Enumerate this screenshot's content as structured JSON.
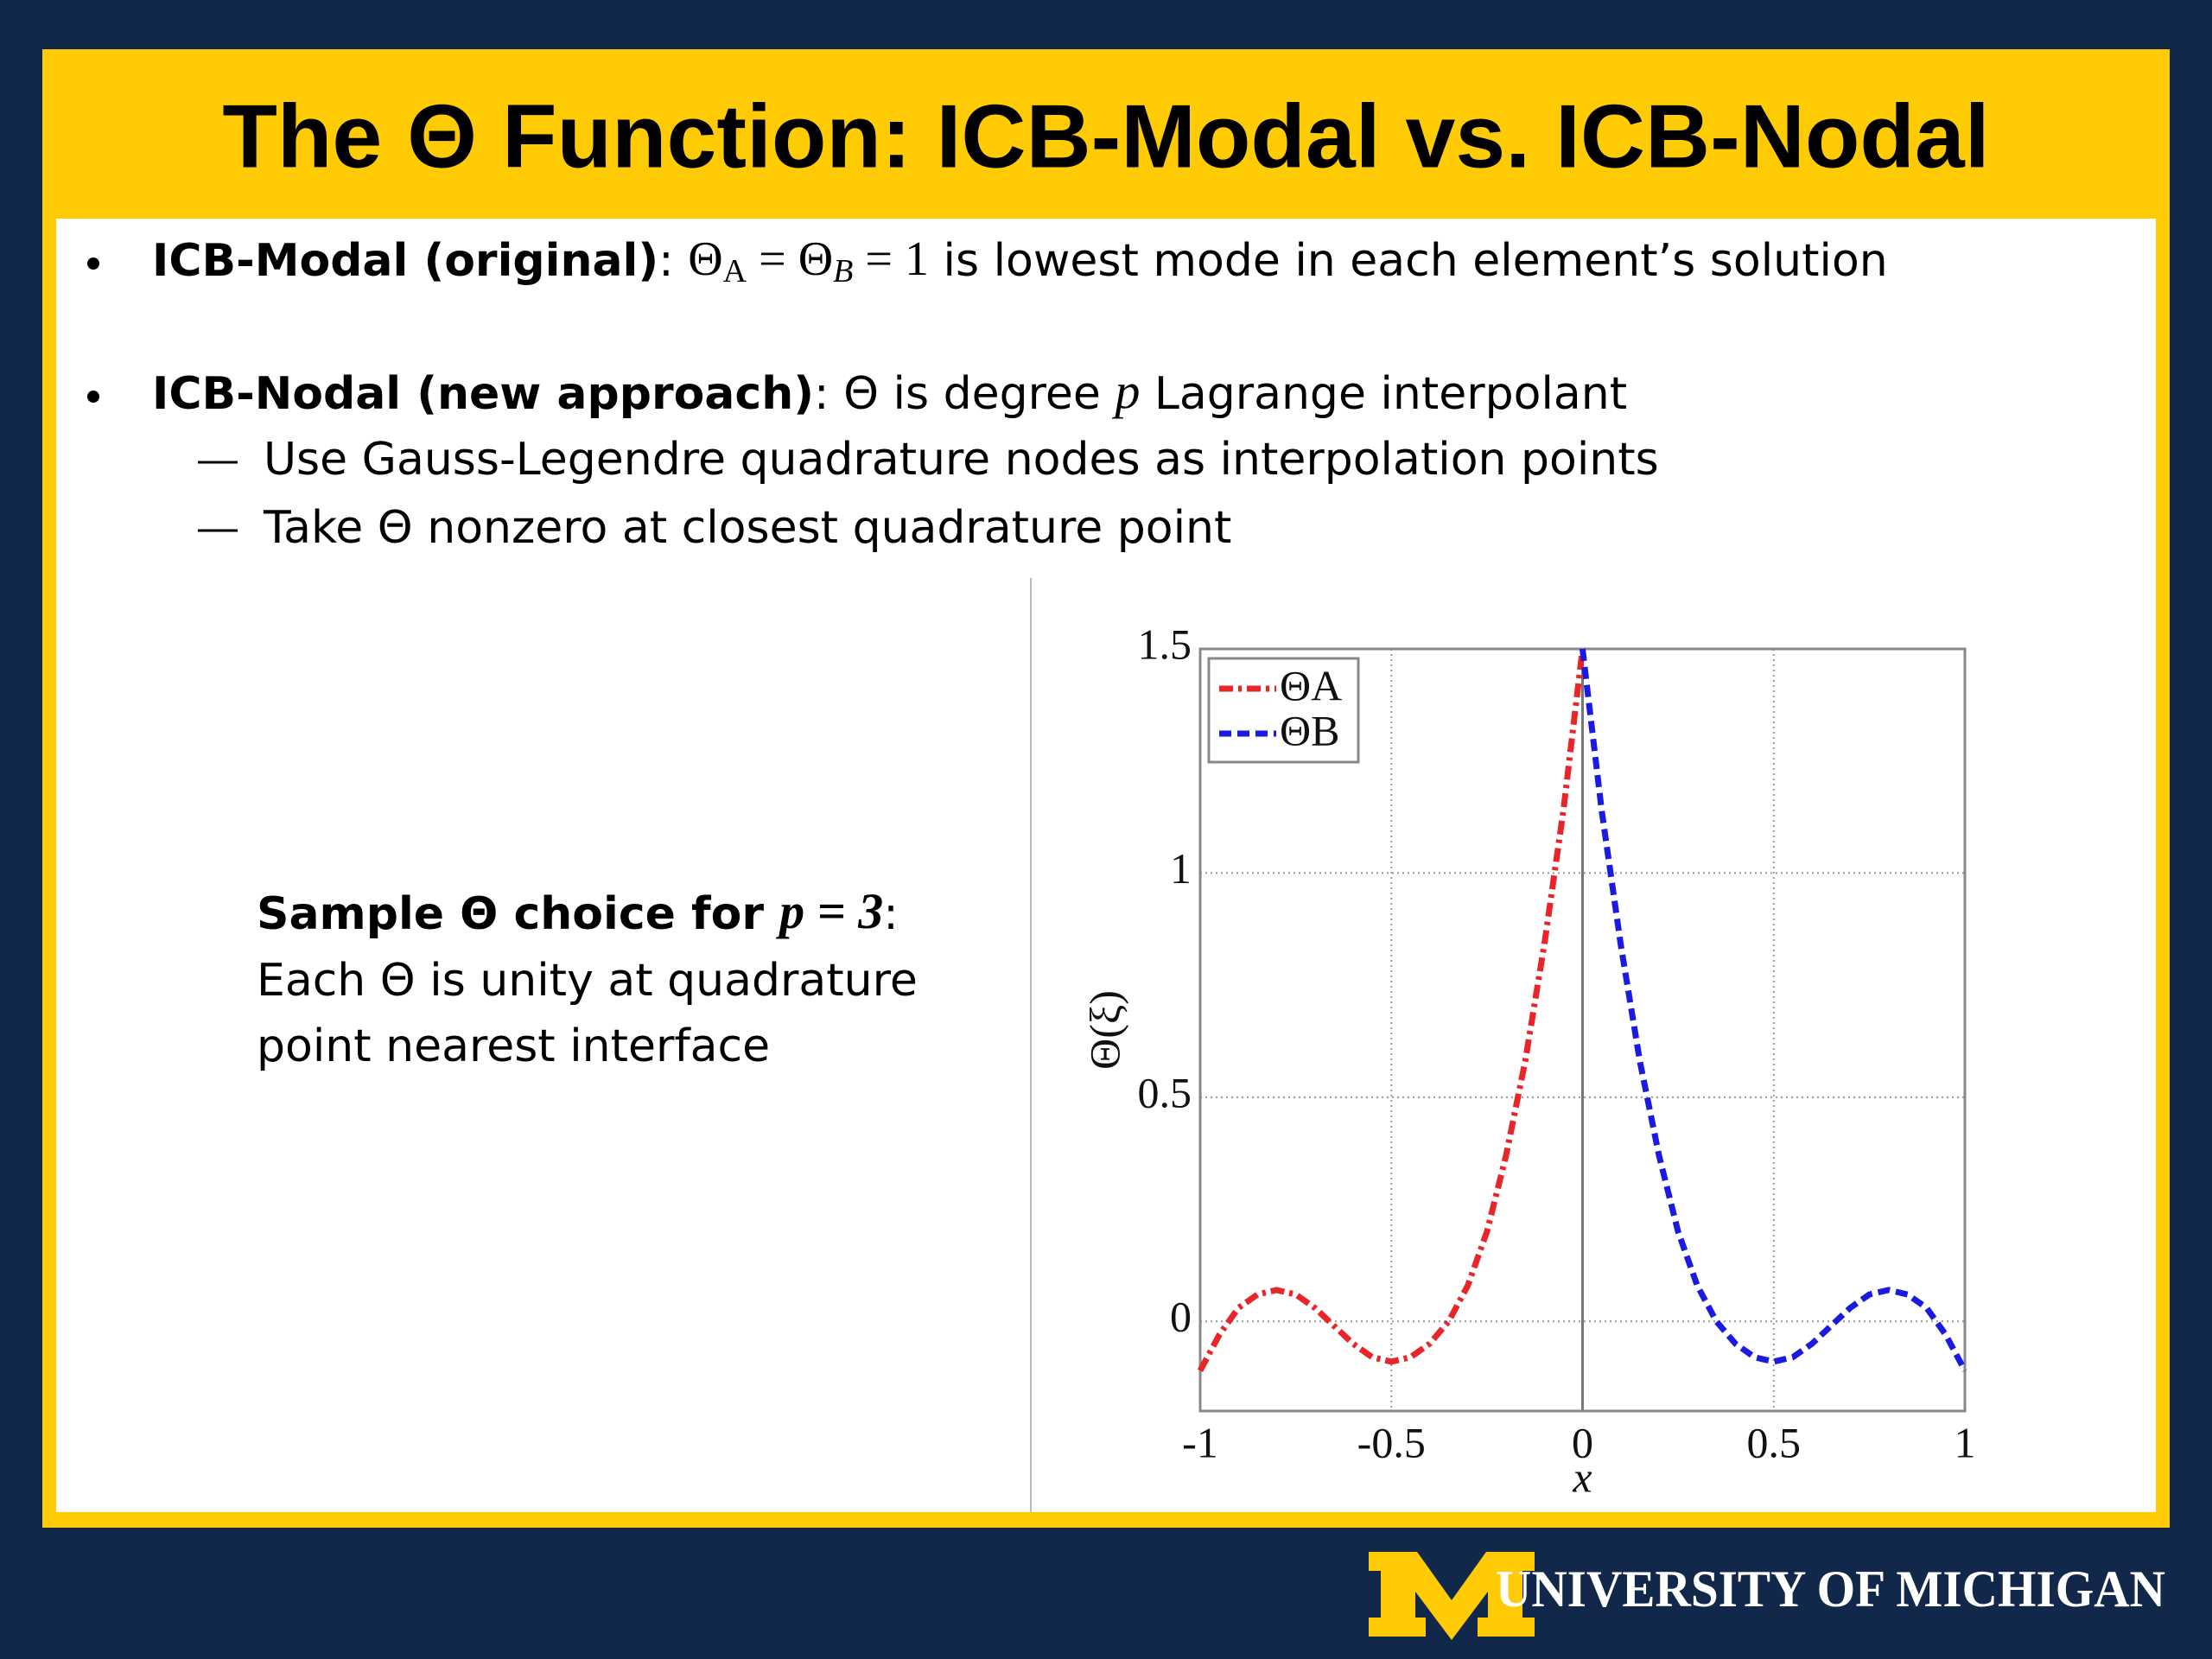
{
  "header": {
    "title": "The Θ Function: ICB-Modal vs. ICB-Nodal"
  },
  "bullets": [
    {
      "parts": [
        {
          "text": "ICB-Modal (original)",
          "style": "bold"
        },
        {
          "text": ": ",
          "style": "plain"
        },
        {
          "text": "Θ",
          "style": "math"
        },
        {
          "text": "A",
          "style": "sub"
        },
        {
          "text": " = Θ",
          "style": "math"
        },
        {
          "text": "B",
          "style": "sub-italic"
        },
        {
          "text": " = 1",
          "style": "math"
        },
        {
          "text": " is lowest mode in each element’s solution",
          "style": "plain"
        }
      ]
    },
    {
      "parts": [
        {
          "text": "ICB-Nodal (new approach)",
          "style": "bold"
        },
        {
          "text": ": Θ is degree ",
          "style": "plain"
        },
        {
          "text": "p",
          "style": "math-italic"
        },
        {
          "text": " Lagrange interpolant",
          "style": "plain"
        }
      ],
      "subitems": [
        "Use Gauss-Legendre quadrature nodes as interpolation points",
        "Take Θ nonzero at closest quadrature point"
      ]
    }
  ],
  "sample": {
    "heading": [
      {
        "text": "Sample Θ choice for ",
        "style": "bold"
      },
      {
        "text": "p = 3",
        "style": "bold-math"
      },
      {
        "text": ":",
        "style": "plain"
      }
    ],
    "lines": [
      "Each Θ is unity at quadrature",
      "point nearest interface"
    ]
  },
  "chart_data": {
    "type": "line",
    "xlabel": "x",
    "ylabel": "Θ(ξ)",
    "xlim": [
      -1,
      1
    ],
    "ylim": [
      -0.2,
      1.5
    ],
    "xticks": [
      -1,
      -0.5,
      0,
      0.5,
      1
    ],
    "yticks": [
      0,
      0.5,
      1,
      1.5
    ],
    "grid": true,
    "legend": "upper-left",
    "series": [
      {
        "name": "ΘA",
        "color": "#e8262a",
        "dash": "dashdot",
        "x": [
          -1,
          -0.95,
          -0.9,
          -0.85,
          -0.8,
          -0.75,
          -0.7,
          -0.65,
          -0.6,
          -0.55,
          -0.5,
          -0.45,
          -0.4,
          -0.35,
          -0.3,
          -0.25,
          -0.2,
          -0.15,
          -0.1,
          -0.05,
          0
        ],
        "values": [
          -0.11,
          -0.03,
          0.03,
          0.06,
          0.07,
          0.06,
          0.03,
          -0.01,
          -0.05,
          -0.08,
          -0.09,
          -0.08,
          -0.05,
          0.0,
          0.08,
          0.2,
          0.37,
          0.58,
          0.84,
          1.14,
          1.5
        ]
      },
      {
        "name": "ΘB",
        "color": "#1a1ae0",
        "dash": "dashed",
        "x": [
          0,
          0.05,
          0.1,
          0.15,
          0.2,
          0.25,
          0.3,
          0.35,
          0.4,
          0.45,
          0.5,
          0.55,
          0.6,
          0.65,
          0.7,
          0.75,
          0.8,
          0.85,
          0.9,
          0.95,
          1
        ],
        "values": [
          1.5,
          1.14,
          0.84,
          0.58,
          0.37,
          0.2,
          0.08,
          0.0,
          -0.05,
          -0.08,
          -0.09,
          -0.08,
          -0.05,
          -0.01,
          0.03,
          0.06,
          0.07,
          0.06,
          0.03,
          -0.03,
          -0.11
        ]
      }
    ]
  },
  "footer": {
    "text": "UNIVERSITY OF MICHIGAN"
  }
}
